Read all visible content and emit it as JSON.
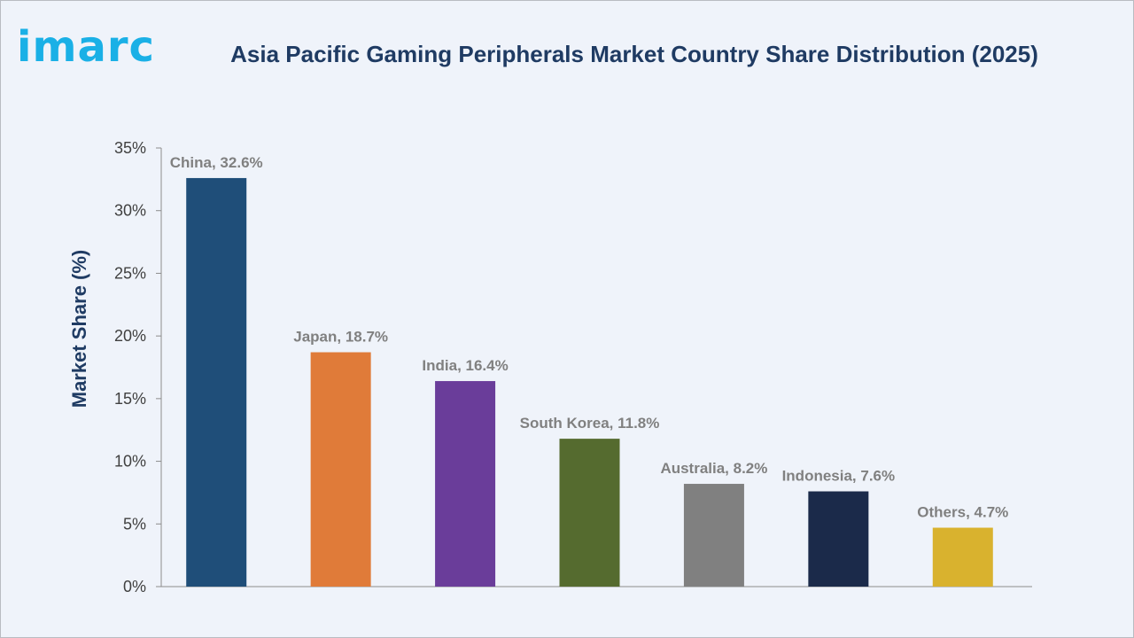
{
  "logo": {
    "text": "imarc",
    "color": "#1ab0e6"
  },
  "chart_data": {
    "type": "bar",
    "title": "Asia Pacific Gaming Peripherals Market Country Share Distribution (2025)",
    "xlabel": "",
    "ylabel": "Market Share (%)",
    "ylim": [
      0,
      35
    ],
    "yticks": [
      "0%",
      "5%",
      "10%",
      "15%",
      "20%",
      "25%",
      "30%",
      "35%"
    ],
    "grid": false,
    "categories": [
      "China",
      "Japan",
      "India",
      "South Korea",
      "Australia",
      "Indonesia",
      "Others"
    ],
    "values": [
      32.6,
      18.7,
      16.4,
      11.8,
      8.2,
      7.6,
      4.7
    ],
    "data_labels": [
      "China, 32.6%",
      "Japan, 18.7%",
      "India, 16.4%",
      "South Korea, 11.8%",
      "Australia, 8.2%",
      "Indonesia, 7.6%",
      "Others, 4.7%"
    ],
    "colors": [
      "#1f4e79",
      "#e07b39",
      "#6a3d9a",
      "#556b2f",
      "#808080",
      "#1b2a4a",
      "#d9b22e"
    ]
  }
}
